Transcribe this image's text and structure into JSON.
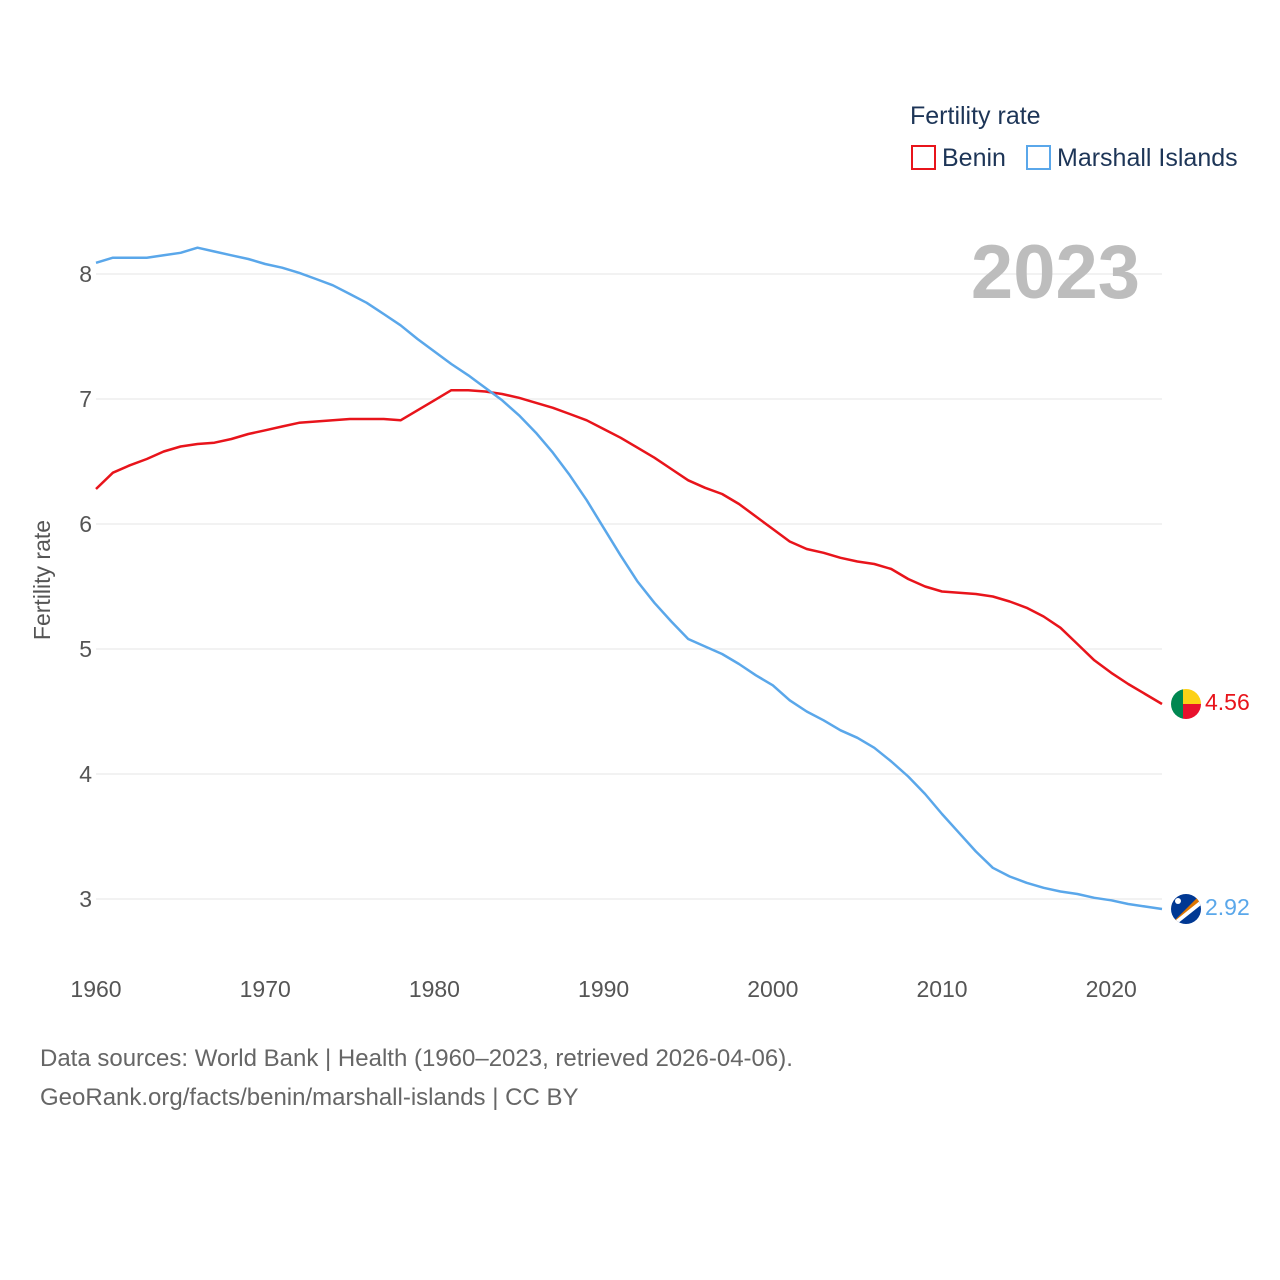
{
  "chart_data": {
    "type": "line",
    "legend_title": "Fertility rate",
    "ylabel": "Fertility rate",
    "xlabel": "",
    "year_label": "2023",
    "xlim": [
      1960,
      2023
    ],
    "ylim": [
      2.5,
      8.5
    ],
    "x_ticks": [
      1960,
      1970,
      1980,
      1990,
      2000,
      2010,
      2020
    ],
    "y_ticks": [
      3,
      4,
      5,
      6,
      7,
      8
    ],
    "legend_position": "top-right",
    "grid": true,
    "x": [
      1960,
      1961,
      1962,
      1963,
      1964,
      1965,
      1966,
      1967,
      1968,
      1969,
      1970,
      1971,
      1972,
      1973,
      1974,
      1975,
      1976,
      1977,
      1978,
      1979,
      1980,
      1981,
      1982,
      1983,
      1984,
      1985,
      1986,
      1987,
      1988,
      1989,
      1990,
      1991,
      1992,
      1993,
      1994,
      1995,
      1996,
      1997,
      1998,
      1999,
      2000,
      2001,
      2002,
      2003,
      2004,
      2005,
      2006,
      2007,
      2008,
      2009,
      2010,
      2011,
      2012,
      2013,
      2014,
      2015,
      2016,
      2017,
      2018,
      2019,
      2020,
      2021,
      2022,
      2023
    ],
    "series": [
      {
        "name": "Benin",
        "color": "#e8141b",
        "end_value_label": "4.56",
        "values": [
          6.28,
          6.41,
          6.47,
          6.52,
          6.58,
          6.62,
          6.64,
          6.65,
          6.68,
          6.72,
          6.75,
          6.78,
          6.81,
          6.82,
          6.83,
          6.84,
          6.84,
          6.84,
          6.83,
          6.91,
          6.99,
          7.07,
          7.07,
          7.06,
          7.04,
          7.01,
          6.97,
          6.93,
          6.88,
          6.83,
          6.76,
          6.69,
          6.61,
          6.53,
          6.44,
          6.35,
          6.29,
          6.24,
          6.16,
          6.06,
          5.96,
          5.86,
          5.8,
          5.77,
          5.73,
          5.7,
          5.68,
          5.64,
          5.56,
          5.5,
          5.46,
          5.45,
          5.44,
          5.42,
          5.38,
          5.33,
          5.26,
          5.17,
          5.04,
          4.91,
          4.81,
          4.72,
          4.64,
          4.56
        ]
      },
      {
        "name": "Marshall Islands",
        "color": "#5aa7ea",
        "end_value_label": "2.92",
        "values": [
          8.09,
          8.13,
          8.13,
          8.13,
          8.15,
          8.17,
          8.21,
          8.18,
          8.15,
          8.12,
          8.08,
          8.05,
          8.01,
          7.96,
          7.91,
          7.84,
          7.77,
          7.68,
          7.59,
          7.48,
          7.38,
          7.28,
          7.19,
          7.09,
          6.99,
          6.87,
          6.73,
          6.57,
          6.39,
          6.19,
          5.97,
          5.75,
          5.54,
          5.37,
          5.22,
          5.08,
          5.02,
          4.96,
          4.88,
          4.79,
          4.71,
          4.59,
          4.5,
          4.43,
          4.35,
          4.29,
          4.21,
          4.1,
          3.98,
          3.84,
          3.68,
          3.53,
          3.38,
          3.25,
          3.18,
          3.13,
          3.09,
          3.06,
          3.04,
          3.01,
          2.99,
          2.96,
          2.94,
          2.92
        ]
      }
    ]
  },
  "footer": {
    "sources": "Data sources: World Bank | Health (1960–2023, retrieved 2026-04-06).",
    "credit": "GeoRank.org/facts/benin/marshall-islands | CC BY"
  }
}
